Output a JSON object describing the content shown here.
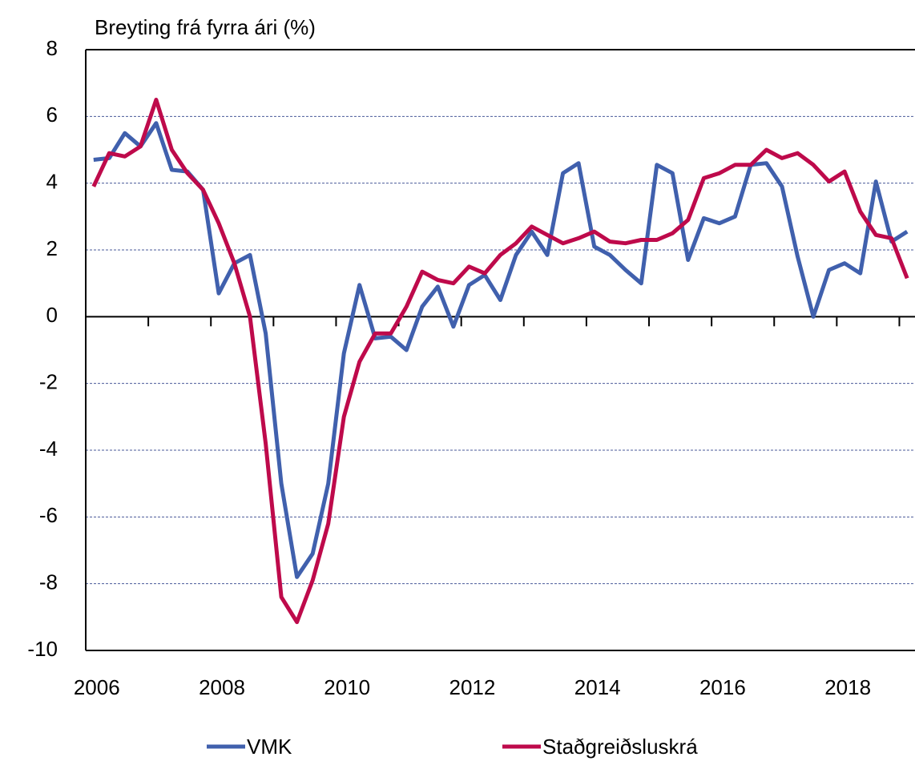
{
  "chart_data": {
    "type": "line",
    "title": "Breyting frá fyrra ári (%)",
    "categories": [
      "2006",
      null,
      null,
      null,
      null,
      null,
      null,
      null,
      "2008",
      null,
      null,
      null,
      null,
      null,
      null,
      null,
      "2010",
      null,
      null,
      null,
      null,
      null,
      null,
      null,
      "2012",
      null,
      null,
      null,
      null,
      null,
      null,
      null,
      "2014",
      null,
      null,
      null,
      null,
      null,
      null,
      null,
      "2016",
      null,
      null,
      null,
      null,
      null,
      null,
      null,
      "2018",
      null,
      null,
      null,
      null
    ],
    "series": [
      {
        "name": "VMK",
        "color": "#4060ad",
        "values": [
          4.7,
          4.75,
          5.5,
          5.1,
          5.8,
          4.4,
          4.35,
          3.8,
          0.7,
          1.6,
          1.85,
          -0.5,
          -5.0,
          -7.8,
          -7.1,
          -5.0,
          -1.1,
          0.95,
          -0.65,
          -0.6,
          -1.0,
          0.3,
          0.9,
          -0.3,
          0.95,
          1.25,
          0.5,
          1.85,
          2.55,
          1.85,
          4.3,
          4.6,
          2.1,
          1.85,
          1.4,
          1.0,
          4.55,
          4.3,
          1.7,
          2.95,
          2.8,
          3.0,
          4.55,
          4.6,
          3.9,
          1.8,
          0.0,
          1.4,
          1.6,
          1.3,
          4.05,
          2.25,
          2.55
        ]
      },
      {
        "name": "Staðgreiðsluskrá",
        "color": "#be0a4b",
        "values": [
          3.9,
          4.9,
          4.8,
          5.1,
          6.5,
          5.0,
          4.3,
          3.8,
          2.8,
          1.6,
          0.0,
          -3.8,
          -8.4,
          -9.15,
          -7.9,
          -6.2,
          -3.0,
          -1.35,
          -0.5,
          -0.5,
          0.3,
          1.35,
          1.1,
          1.0,
          1.5,
          1.3,
          1.85,
          2.2,
          2.7,
          2.45,
          2.2,
          2.35,
          2.55,
          2.25,
          2.2,
          2.3,
          2.3,
          2.5,
          2.9,
          4.15,
          4.3,
          4.55,
          4.55,
          5.0,
          4.75,
          4.9,
          4.55,
          4.05,
          4.35,
          3.15,
          2.45,
          2.35,
          1.15
        ]
      }
    ],
    "ylim": [
      -10,
      8
    ],
    "yticks": [
      -10,
      -8,
      -6,
      -4,
      -2,
      0,
      2,
      4,
      6,
      8
    ],
    "grid": true,
    "legend": "bottom"
  }
}
